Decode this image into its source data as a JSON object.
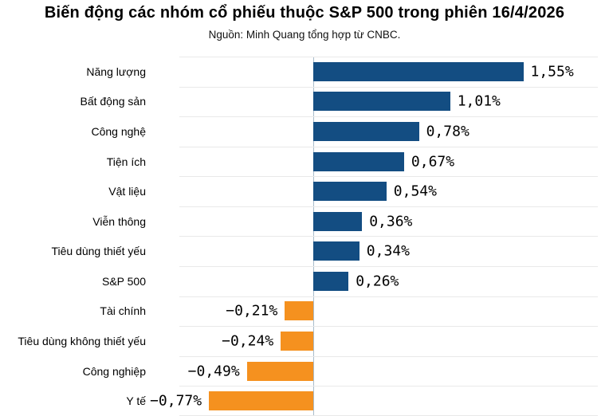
{
  "header": {
    "title": "Biến động các nhóm cổ phiếu thuộc S&P 500 trong phiên 16/4/2026",
    "subtitle": "Nguồn: Minh Quang tổng hợp từ CNBC."
  },
  "chart_data": {
    "type": "bar",
    "orientation": "horizontal",
    "title": "Biến động các nhóm cổ phiếu thuộc S&P 500 trong phiên 16/4/2026",
    "subtitle": "Nguồn: Minh Quang tổng hợp từ CNBC.",
    "categories": [
      "Năng lượng",
      "Bất động sản",
      "Công nghệ",
      "Tiện ích",
      "Vật liệu",
      "Viễn thông",
      "Tiêu dùng thiết yếu",
      "S&P 500",
      "Tài chính",
      "Tiêu dùng không thiết yếu",
      "Công nghiệp",
      "Y tế"
    ],
    "values": [
      1.55,
      1.01,
      0.78,
      0.67,
      0.54,
      0.36,
      0.34,
      0.26,
      -0.21,
      -0.24,
      -0.49,
      -0.77
    ],
    "value_labels": [
      "1,55%",
      "1,01%",
      "0,78%",
      "0,67%",
      "0,54%",
      "0,36%",
      "0,34%",
      "0,26%",
      "−0,21%",
      "−0,24%",
      "−0,49%",
      "−0,77%"
    ],
    "unit": "%",
    "xlim": [
      -0.99,
      2.1
    ],
    "grid": "horizontal-row-separators",
    "legend": "none",
    "positive_color": "#134d82",
    "negative_color": "#f5911f",
    "axis_color": "#a9bccb",
    "gridline_color": "#e9e9e9"
  }
}
